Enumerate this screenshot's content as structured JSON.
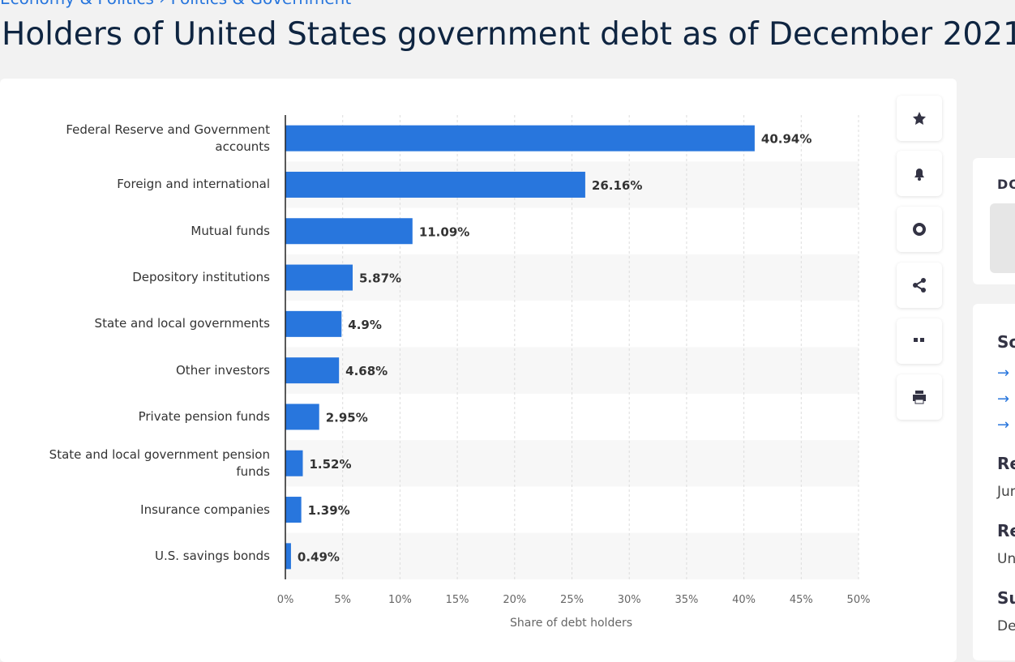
{
  "breadcrumb": [
    "Economy & Politics",
    "Politics & Government"
  ],
  "header": {
    "title": "Holders of United States government debt as of December 2021"
  },
  "side_panel": [
    "DO",
    "So",
    "Re",
    "Jun",
    "Re",
    "Un",
    "Su",
    "De"
  ],
  "chart_data": {
    "type": "bar",
    "orientation": "horizontal",
    "categories": [
      "Federal Reserve and Government accounts",
      "Foreign and international",
      "Mutual funds",
      "Depository institutions",
      "State and local governments",
      "Other investors",
      "Private pension funds",
      "State and local government pension funds",
      "Insurance companies",
      "U.S. savings bonds"
    ],
    "values": [
      40.94,
      26.16,
      11.09,
      5.87,
      4.9,
      4.68,
      2.95,
      1.52,
      1.39,
      0.49
    ],
    "value_labels": [
      "40.94%",
      "26.16%",
      "11.09%",
      "5.87%",
      "4.9%",
      "4.68%",
      "2.95%",
      "1.52%",
      "1.39%",
      "0.49%"
    ],
    "color": "#2876dd",
    "xlabel": "Share of debt holders",
    "xlim": [
      0,
      50
    ],
    "xticks": [
      {
        "value": 0,
        "label": "0%"
      },
      {
        "value": 5,
        "label": "5%"
      },
      {
        "value": 10,
        "label": "10%"
      },
      {
        "value": 15,
        "label": "15%"
      },
      {
        "value": 20,
        "label": "20%"
      },
      {
        "value": 25,
        "label": "25%"
      },
      {
        "value": 30,
        "label": "30%"
      },
      {
        "value": 35,
        "label": "35%"
      },
      {
        "value": 40,
        "label": "40%"
      },
      {
        "value": 45,
        "label": "45%"
      },
      {
        "value": 50,
        "label": "50%"
      }
    ],
    "grid": true
  }
}
